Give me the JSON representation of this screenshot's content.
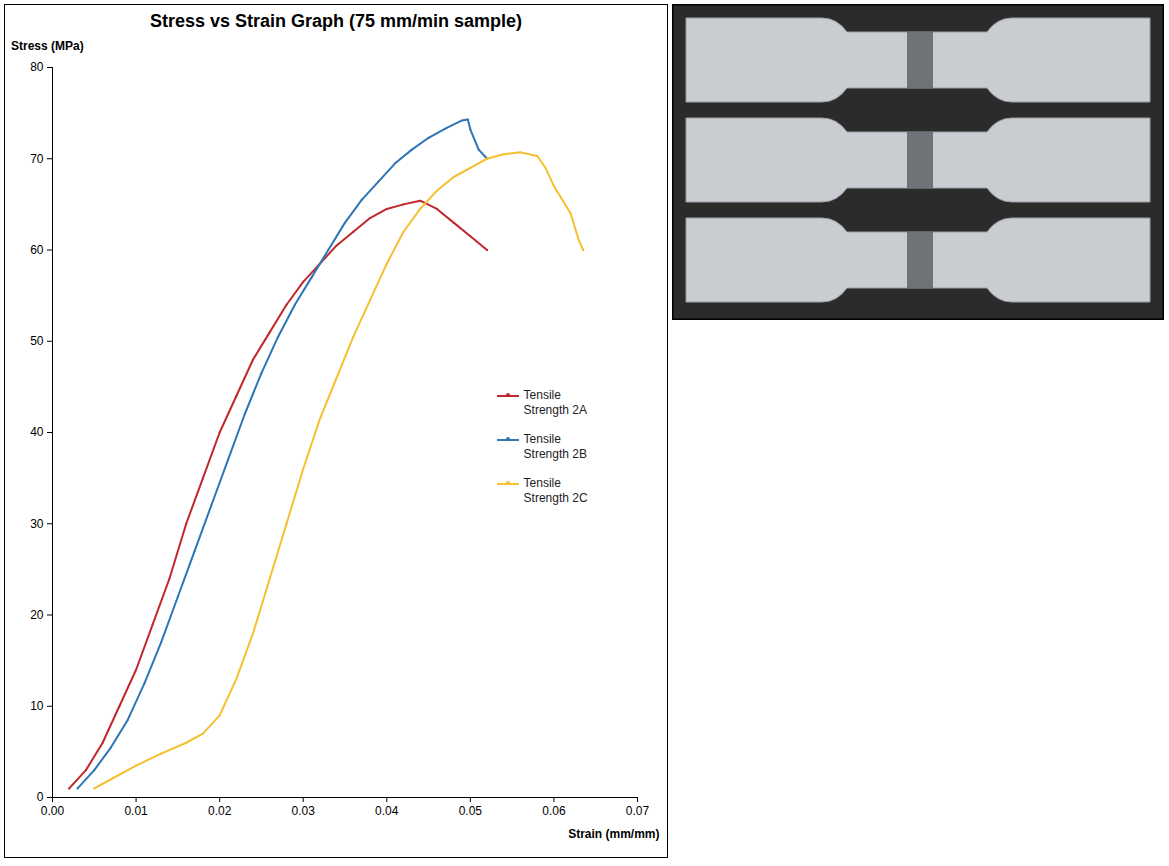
{
  "chart_data": {
    "type": "line",
    "title": "Stress vs Strain Graph (75 mm/min sample)",
    "x_label": "Strain (mm/mm)",
    "y_label": "Stress (MPa)",
    "xlim": [
      0,
      0.07
    ],
    "xticks": [
      {
        "value": 0,
        "label": "0.00"
      },
      {
        "value": 0.01,
        "label": "0.01"
      },
      {
        "value": 0.02,
        "label": "0.02"
      },
      {
        "value": 0.03,
        "label": "0.03"
      },
      {
        "value": 0.04,
        "label": "0.04"
      },
      {
        "value": 0.05,
        "label": "0.05"
      },
      {
        "value": 0.06,
        "label": "0.06"
      },
      {
        "value": 0.07,
        "label": "0.07"
      }
    ],
    "ylim": [
      0,
      80
    ],
    "yticks": [
      0,
      10,
      20,
      30,
      40,
      50,
      60,
      70,
      80
    ],
    "grid": false,
    "legend": "right",
    "series": [
      {
        "name": "Tensile Strength 2A",
        "color": "#c0282d",
        "x": [
          0.002,
          0.004,
          0.006,
          0.008,
          0.01,
          0.012,
          0.014,
          0.016,
          0.018,
          0.02,
          0.022,
          0.024,
          0.026,
          0.028,
          0.03,
          0.032,
          0.034,
          0.036,
          0.038,
          0.04,
          0.042,
          0.044,
          0.046,
          0.048,
          0.05,
          0.052
        ],
        "values": [
          1,
          3,
          6,
          10,
          14,
          19,
          24,
          30,
          35,
          40,
          44,
          48,
          51,
          54,
          56.5,
          58.5,
          60.5,
          62,
          63.5,
          64.5,
          65,
          65.4,
          64.5,
          63,
          61.5,
          60
        ]
      },
      {
        "name": "Tensile Strength 2B",
        "color": "#2e75b6",
        "x": [
          0.003,
          0.005,
          0.007,
          0.009,
          0.011,
          0.013,
          0.015,
          0.017,
          0.019,
          0.021,
          0.023,
          0.025,
          0.027,
          0.029,
          0.031,
          0.033,
          0.035,
          0.037,
          0.039,
          0.041,
          0.043,
          0.045,
          0.047,
          0.049,
          0.0497,
          0.05,
          0.051,
          0.052
        ],
        "values": [
          1,
          3,
          5.5,
          8.5,
          12.5,
          17,
          22,
          27,
          32,
          37,
          42,
          46.5,
          50.5,
          54,
          57,
          60,
          63,
          65.5,
          67.5,
          69.5,
          71,
          72.3,
          73.3,
          74.2,
          74.3,
          73.2,
          71,
          70
        ]
      },
      {
        "name": "Tensile Strength 2C",
        "color": "#f5c02f",
        "x": [
          0.005,
          0.007,
          0.01,
          0.013,
          0.016,
          0.018,
          0.02,
          0.022,
          0.024,
          0.026,
          0.028,
          0.03,
          0.032,
          0.034,
          0.036,
          0.038,
          0.04,
          0.042,
          0.044,
          0.046,
          0.048,
          0.05,
          0.052,
          0.054,
          0.056,
          0.058,
          0.059,
          0.06,
          0.062,
          0.063,
          0.0635
        ],
        "values": [
          1,
          2,
          3.5,
          4.8,
          6,
          7,
          9,
          13,
          18,
          24,
          30,
          36,
          41.5,
          46,
          50.5,
          54.5,
          58.5,
          62,
          64.5,
          66.5,
          68,
          69,
          70,
          70.5,
          70.7,
          70.3,
          69,
          67,
          64,
          61,
          60
        ]
      }
    ]
  }
}
